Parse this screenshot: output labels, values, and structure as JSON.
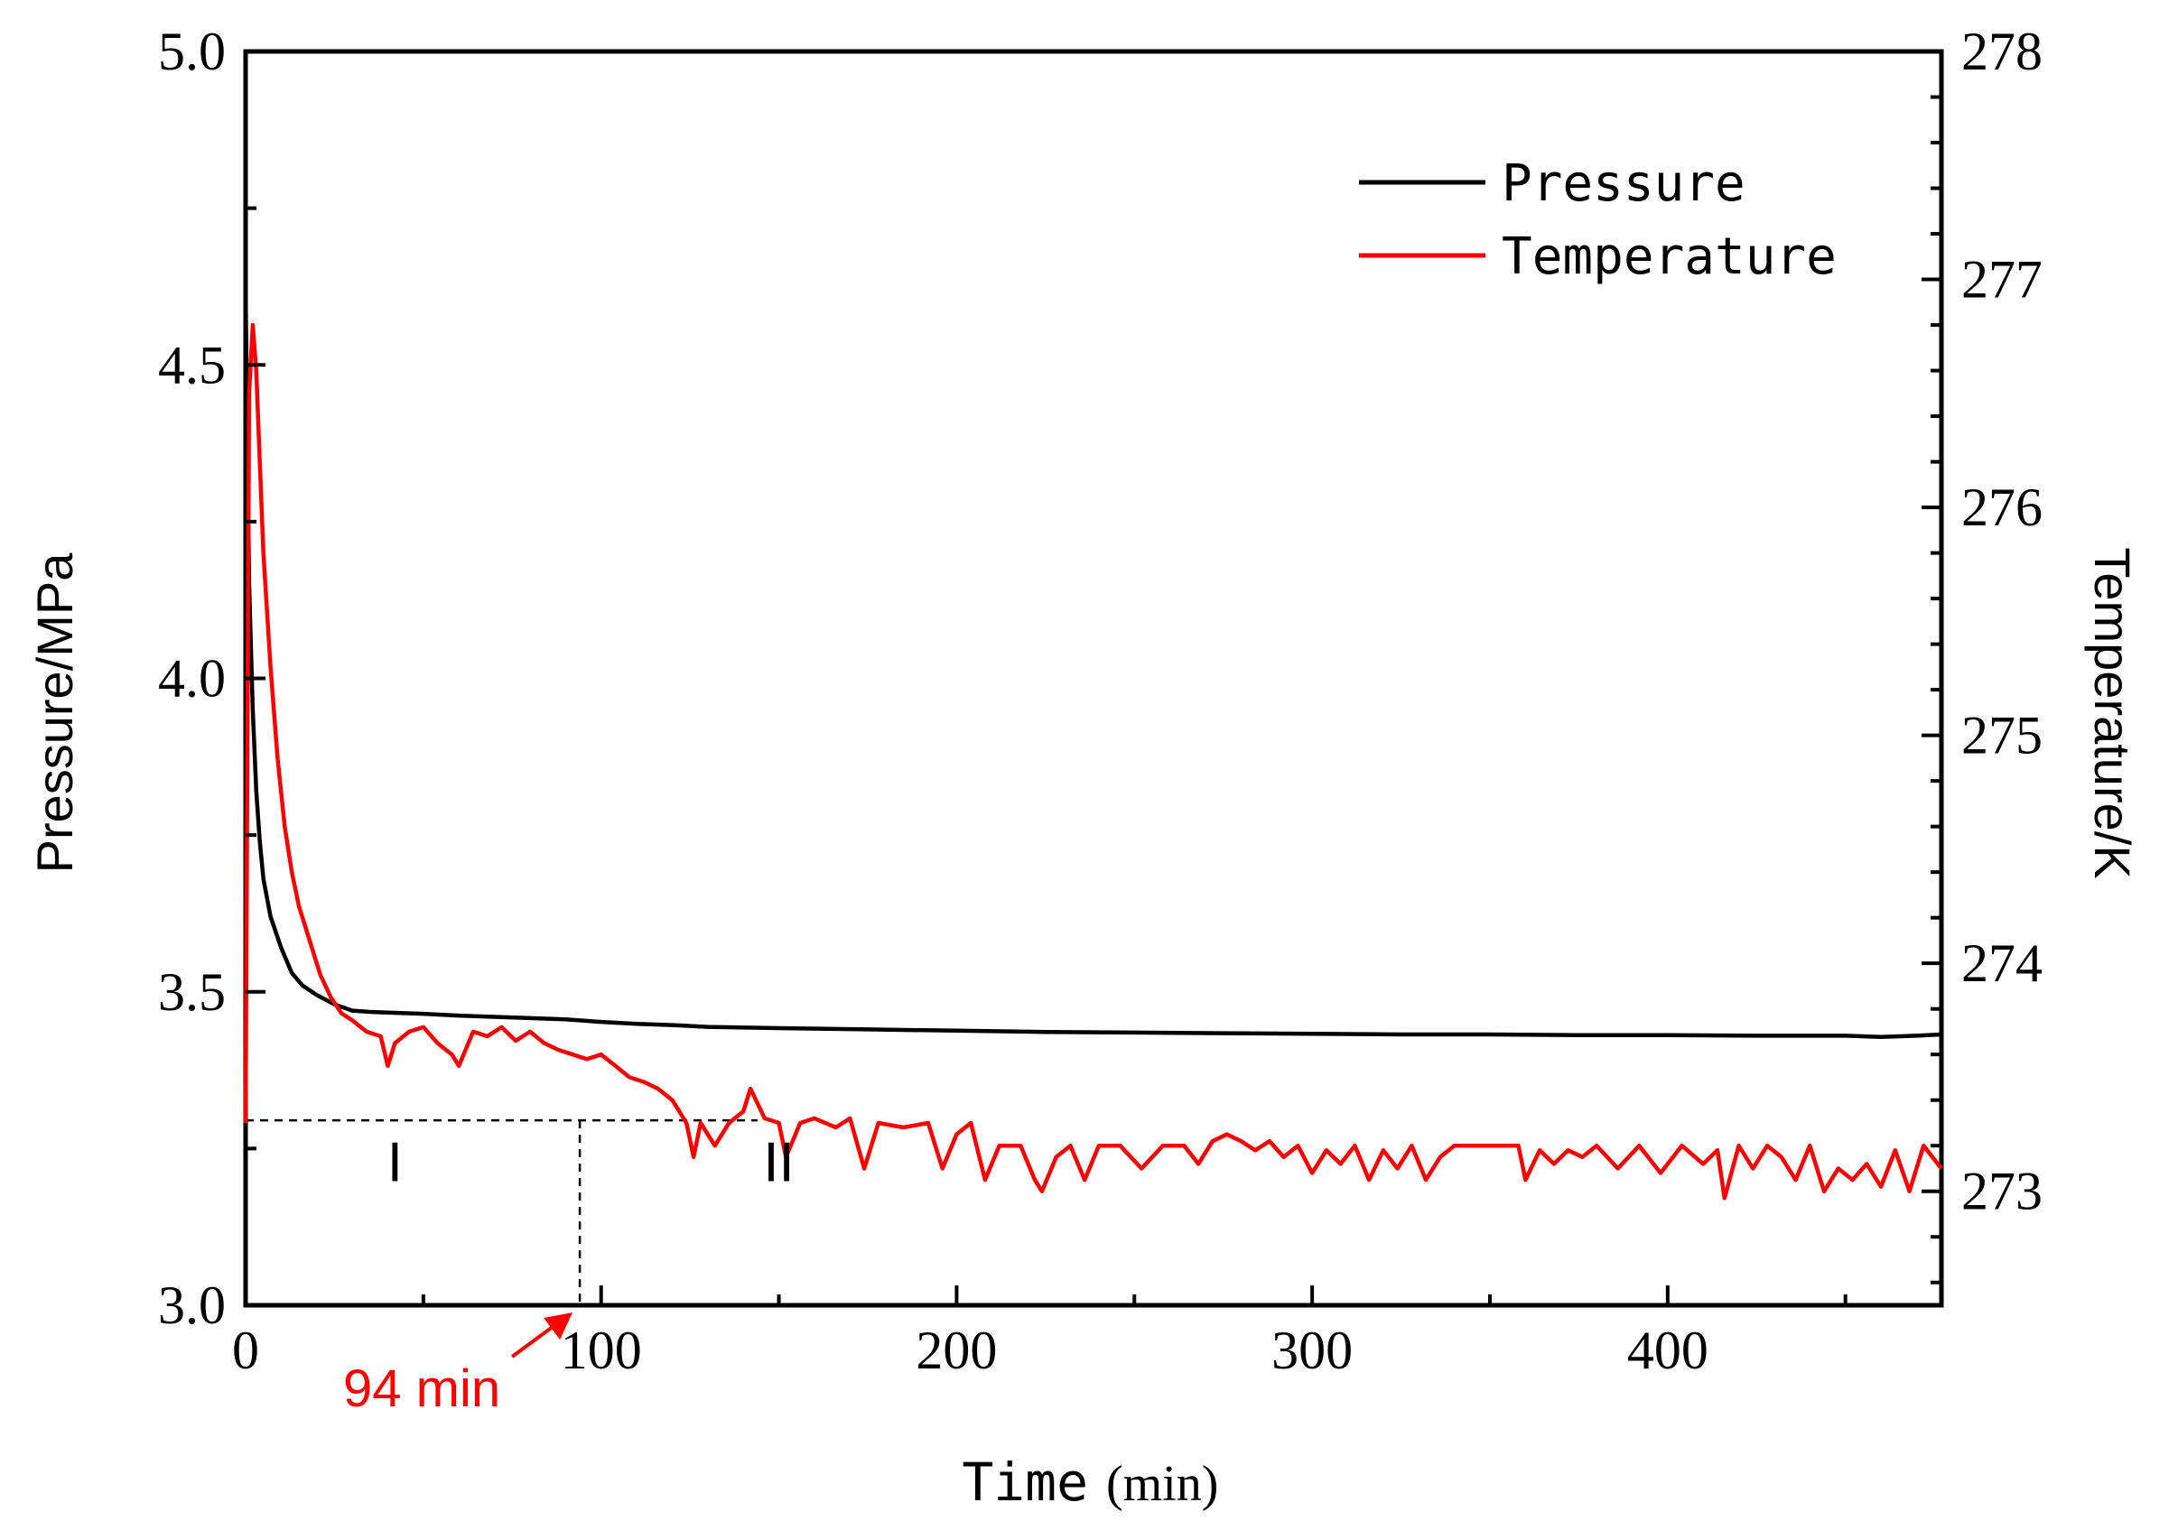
{
  "chart_data": {
    "type": "line",
    "xlabel": "Time",
    "xlabel_unit": "(min)",
    "ylabel_left": "Pressure/MPa",
    "ylabel_right": "Temperature/K",
    "x_range": [
      0,
      477
    ],
    "y_left_range": [
      3.0,
      5.0
    ],
    "y_right_range": [
      272.5,
      278.0
    ],
    "x_ticks": [
      0,
      100,
      200,
      300,
      400
    ],
    "x_tick_labels": [
      "0",
      "100",
      "200",
      "300",
      "400"
    ],
    "y_left_ticks": [
      3.0,
      3.5,
      4.0,
      4.5,
      5.0
    ],
    "y_left_tick_labels": [
      "3.0",
      "3.5",
      "4.0",
      "4.5",
      "5.0"
    ],
    "y_right_ticks": [
      273,
      274,
      275,
      276,
      277,
      278
    ],
    "y_right_tick_labels": [
      "273",
      "274",
      "275",
      "276",
      "277",
      "278"
    ],
    "legend": [
      {
        "label": "Pressure",
        "color": "#000000"
      },
      {
        "label": "Temperature",
        "color": "#ff0000"
      }
    ],
    "series": [
      {
        "name": "Pressure",
        "axis": "left",
        "color": "#000000",
        "x": [
          0,
          1,
          2,
          3,
          4,
          5,
          7,
          10,
          13,
          16,
          20,
          25,
          30,
          35,
          40,
          50,
          60,
          70,
          80,
          90,
          100,
          110,
          120,
          130,
          150,
          175,
          200,
          225,
          250,
          275,
          300,
          325,
          350,
          375,
          400,
          425,
          450,
          460,
          470,
          477
        ],
        "values": [
          4.62,
          4.15,
          3.95,
          3.82,
          3.74,
          3.68,
          3.62,
          3.57,
          3.53,
          3.51,
          3.495,
          3.48,
          3.47,
          3.468,
          3.467,
          3.465,
          3.462,
          3.46,
          3.458,
          3.456,
          3.452,
          3.449,
          3.447,
          3.444,
          3.442,
          3.44,
          3.438,
          3.436,
          3.435,
          3.434,
          3.433,
          3.432,
          3.432,
          3.431,
          3.431,
          3.43,
          3.43,
          3.428,
          3.43,
          3.432
        ]
      },
      {
        "name": "Temperature",
        "axis": "right",
        "color": "#ff0000",
        "x": [
          0,
          1,
          2,
          3,
          4,
          5,
          7,
          9,
          11,
          13,
          15,
          18,
          21,
          24,
          27,
          30,
          34,
          38,
          40,
          42,
          46,
          50,
          54,
          58,
          60,
          64,
          68,
          72,
          76,
          80,
          84,
          88,
          92,
          96,
          100,
          104,
          108,
          112,
          116,
          120,
          124,
          126,
          128,
          132,
          136,
          140,
          142,
          146,
          150,
          152,
          156,
          160,
          166,
          170,
          174,
          178,
          185,
          192,
          196,
          200,
          204,
          208,
          212,
          218,
          222,
          224,
          228,
          232,
          236,
          240,
          246,
          252,
          258,
          264,
          268,
          272,
          276,
          280,
          284,
          288,
          292,
          296,
          300,
          304,
          308,
          312,
          316,
          320,
          324,
          328,
          332,
          336,
          340,
          346,
          352,
          358,
          360,
          364,
          368,
          372,
          376,
          380,
          386,
          392,
          398,
          404,
          410,
          414,
          416,
          420,
          424,
          428,
          432,
          436,
          440,
          444,
          448,
          452,
          456,
          460,
          464,
          468,
          472,
          477
        ],
        "values": [
          273.3,
          276.5,
          276.8,
          276.6,
          276.2,
          275.8,
          275.3,
          274.9,
          274.6,
          274.4,
          274.25,
          274.1,
          273.95,
          273.85,
          273.78,
          273.75,
          273.7,
          273.68,
          273.55,
          273.65,
          273.7,
          273.72,
          273.65,
          273.6,
          273.55,
          273.7,
          273.68,
          273.72,
          273.66,
          273.7,
          273.65,
          273.62,
          273.6,
          273.58,
          273.6,
          273.55,
          273.5,
          273.48,
          273.45,
          273.4,
          273.3,
          273.15,
          273.3,
          273.2,
          273.3,
          273.35,
          273.45,
          273.32,
          273.3,
          273.15,
          273.3,
          273.32,
          273.28,
          273.32,
          273.1,
          273.3,
          273.28,
          273.3,
          273.1,
          273.25,
          273.3,
          273.05,
          273.2,
          273.2,
          273.05,
          273.0,
          273.15,
          273.2,
          273.05,
          273.2,
          273.2,
          273.1,
          273.2,
          273.2,
          273.12,
          273.22,
          273.25,
          273.22,
          273.18,
          273.22,
          273.15,
          273.2,
          273.08,
          273.18,
          273.12,
          273.2,
          273.05,
          273.18,
          273.1,
          273.2,
          273.05,
          273.15,
          273.2,
          273.2,
          273.2,
          273.2,
          273.05,
          273.18,
          273.12,
          273.18,
          273.15,
          273.2,
          273.1,
          273.2,
          273.08,
          273.2,
          273.12,
          273.18,
          272.97,
          273.2,
          273.1,
          273.2,
          273.15,
          273.05,
          273.2,
          273.0,
          273.1,
          273.05,
          273.12,
          273.02,
          273.18,
          273.0,
          273.2,
          273.1
        ]
      }
    ],
    "reference_lines": {
      "horizontal_pressure": 3.295,
      "vertical_time": 94
    },
    "annotations": {
      "region_1": {
        "text": "I",
        "x": 42,
        "y": 3.27
      },
      "region_2": {
        "text": "II",
        "x": 150,
        "y": 3.27
      },
      "marker": {
        "text": "94 min",
        "x": 94,
        "color": "#ff0000"
      }
    }
  }
}
